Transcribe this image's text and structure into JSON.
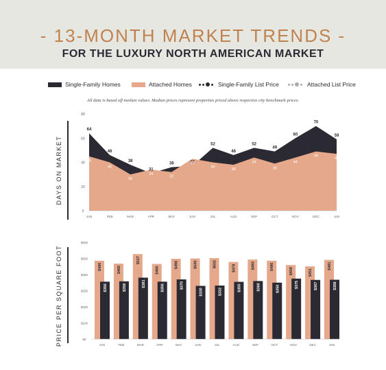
{
  "header": {
    "title": "- 13-MONTH MARKET TRENDS -",
    "subtitle": "FOR THE LUXURY NORTH AMERICAN MARKET"
  },
  "legend": {
    "single_family": "Single-Family Homes",
    "attached": "Attached Homes",
    "sf_list_price": "Single-Family List Price",
    "att_list_price": "Attached List Price"
  },
  "note": "All data is based off median values. Median prices represent properties priced above respective city benchmark prices.",
  "colors": {
    "dark": "#2b2a33",
    "peach": "#e5a88a",
    "title_gold": "#c0824f",
    "header_bg": "#e7e7e2"
  },
  "chart_data": [
    {
      "type": "area",
      "ylabel": "DAYS ON MARKET",
      "categories": [
        "JAN",
        "FEB",
        "MAR",
        "APR",
        "MAY",
        "JUN",
        "JUL",
        "AUG",
        "SEP",
        "OCT",
        "NOV",
        "DEC",
        "JAN"
      ],
      "ylim": [
        0,
        80
      ],
      "yticks": [
        "0",
        "20",
        "40",
        "60",
        "80"
      ],
      "series": [
        {
          "name": "Single-Family Homes",
          "values": [
            64,
            46,
            38,
            31,
            36,
            37,
            52,
            46,
            52,
            49,
            60,
            70,
            59
          ]
        },
        {
          "name": "Attached Homes",
          "values": [
            45,
            40,
            30,
            34,
            32,
            43,
            40,
            38,
            44,
            39,
            44,
            49,
            47
          ]
        }
      ]
    },
    {
      "type": "bar",
      "ylabel": "PRICE PER SQUARE FOOT",
      "categories": [
        "JAN",
        "FEB",
        "MAR",
        "APR",
        "MAY",
        "JUN",
        "JUL",
        "AUG",
        "SEP",
        "OCT",
        "NOV",
        "DEC",
        "JAN"
      ],
      "ylim": [
        0,
        600
      ],
      "yticks": [
        "$0",
        "$100",
        "$200",
        "$300",
        "$400",
        "$500",
        "$600"
      ],
      "series": [
        {
          "name": "Attached Homes",
          "values": [
            486,
            468,
            527,
            466,
            498,
            500,
            502,
            478,
            493,
            486,
            459,
            451,
            491
          ],
          "labels": [
            "$486",
            "$468",
            "$527",
            "$466",
            "$498",
            "$500",
            "$502",
            "$478",
            "$493",
            "$486",
            "$459",
            "$451",
            "$491"
          ]
        },
        {
          "name": "Single-Family Homes",
          "values": [
            356,
            358,
            381,
            356,
            370,
            330,
            332,
            355,
            360,
            350,
            375,
            367,
            368
          ],
          "labels": [
            "$356",
            "$358",
            "$381",
            "$356",
            "$370",
            "$330",
            "$332",
            "$355",
            "$360",
            "$350",
            "$375",
            "$367",
            "$368"
          ]
        }
      ]
    }
  ]
}
